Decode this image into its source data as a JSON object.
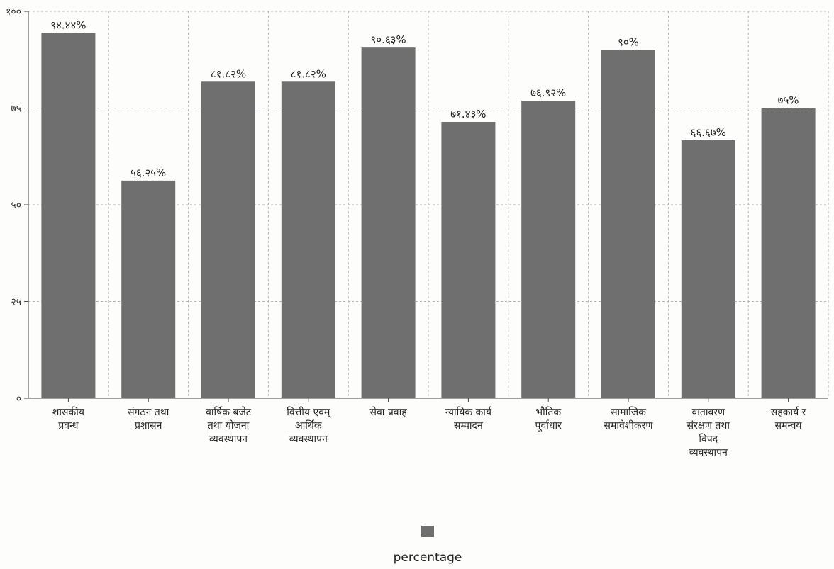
{
  "chart_data": {
    "type": "bar",
    "categories": [
      [
        "शासकीय",
        "प्रवन्ध"
      ],
      [
        "संगठन तथा",
        "प्रशासन"
      ],
      [
        "वार्षिक बजेट",
        "तथा योजना",
        "व्यवस्थापन"
      ],
      [
        "वित्तीय एवम्",
        "आर्थिक",
        "व्यवस्थापन"
      ],
      [
        "सेवा प्रवाह"
      ],
      [
        "न्यायिक कार्य",
        "सम्पादन"
      ],
      [
        "भौतिक",
        "पूर्वाधार"
      ],
      [
        "सामाजिक",
        "समावेशीकरण"
      ],
      [
        "वातावरण",
        "संरक्षण तथा",
        "विपद",
        "व्यवस्थापन"
      ],
      [
        "सहकार्य र",
        "समन्वय"
      ]
    ],
    "values": [
      94.44,
      56.25,
      81.82,
      81.82,
      90.63,
      71.43,
      76.92,
      90,
      66.67,
      75
    ],
    "data_labels": [
      "९४.४४%",
      "५६.२५%",
      "८१.८२%",
      "८१.८२%",
      "९०.६३%",
      "७१.४३%",
      "७६.९२%",
      "९०%",
      "६६.६७%",
      "७५%"
    ],
    "y_ticks": [
      {
        "value": 0,
        "label": "०"
      },
      {
        "value": 25,
        "label": "२५"
      },
      {
        "value": 50,
        "label": "५०"
      },
      {
        "value": 75,
        "label": "७५"
      },
      {
        "value": 100,
        "label": "१००"
      }
    ],
    "ylim": [
      0,
      100
    ],
    "grid": true,
    "legend": {
      "position": "bottom",
      "label": "percentage"
    },
    "colors": {
      "bar": "#6f6f6f",
      "grid": "#b5b5b5",
      "axis": "#444444"
    }
  }
}
